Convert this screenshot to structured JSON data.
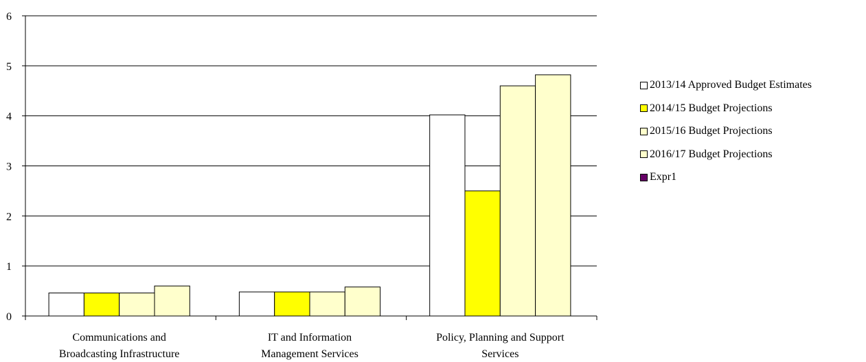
{
  "chart_data": {
    "type": "bar",
    "categories": [
      [
        "Communications and",
        "Broadcasting Infrastructure"
      ],
      [
        "IT and Information",
        "Management Services"
      ],
      [
        "Policy, Planning and Support",
        "Services"
      ]
    ],
    "series": [
      {
        "name": "2013/14 Approved Budget Estimates",
        "color": "#FFFFFF",
        "values": [
          0.46,
          0.48,
          4.02
        ]
      },
      {
        "name": "2014/15 Budget Projections",
        "color": "#FFFF00",
        "values": [
          0.46,
          0.48,
          2.5
        ]
      },
      {
        "name": "2015/16 Budget Projections",
        "color": "#FFFFCC",
        "values": [
          0.46,
          0.48,
          4.6
        ]
      },
      {
        "name": "2016/17 Budget Projections",
        "color": "#FFFFCC",
        "values": [
          0.6,
          0.58,
          4.82
        ]
      },
      {
        "name": "Expr1",
        "color": "#660066",
        "values": [
          0,
          0,
          0
        ]
      }
    ],
    "ylim": [
      0,
      6
    ],
    "yticks": [
      0,
      1,
      2,
      3,
      4,
      5,
      6
    ],
    "grid": true,
    "legend_position": "right"
  }
}
